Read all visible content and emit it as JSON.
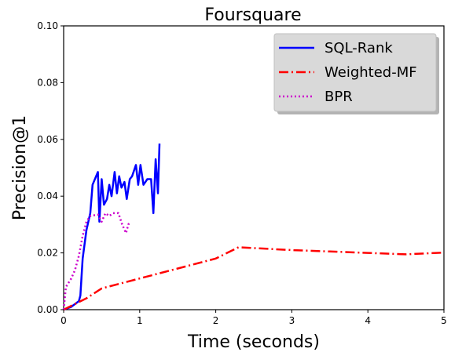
{
  "chart_data": {
    "type": "line",
    "title": "Foursquare",
    "xlabel": "Time (seconds)",
    "ylabel": "Precision@1",
    "xlim": [
      0,
      5
    ],
    "ylim": [
      0,
      0.1
    ],
    "x_ticks": [
      "0",
      "1",
      "2",
      "3",
      "4",
      "5"
    ],
    "y_ticks": [
      "0.00",
      "0.02",
      "0.04",
      "0.06",
      "0.08",
      "0.10"
    ],
    "legend_position": "top-right",
    "grid": false,
    "series": [
      {
        "name": "SQL-Rank",
        "color": "#0000ff",
        "style": "solid",
        "points": [
          [
            0.0,
            0.0
          ],
          [
            0.1,
            0.001
          ],
          [
            0.2,
            0.003
          ],
          [
            0.22,
            0.005
          ],
          [
            0.25,
            0.018
          ],
          [
            0.3,
            0.028
          ],
          [
            0.35,
            0.034
          ],
          [
            0.38,
            0.044
          ],
          [
            0.45,
            0.0485
          ],
          [
            0.47,
            0.031
          ],
          [
            0.5,
            0.046
          ],
          [
            0.53,
            0.037
          ],
          [
            0.57,
            0.039
          ],
          [
            0.6,
            0.044
          ],
          [
            0.63,
            0.04
          ],
          [
            0.67,
            0.0485
          ],
          [
            0.7,
            0.041
          ],
          [
            0.73,
            0.047
          ],
          [
            0.76,
            0.043
          ],
          [
            0.8,
            0.045
          ],
          [
            0.83,
            0.039
          ],
          [
            0.87,
            0.046
          ],
          [
            0.9,
            0.047
          ],
          [
            0.95,
            0.051
          ],
          [
            0.98,
            0.044
          ],
          [
            1.01,
            0.051
          ],
          [
            1.05,
            0.044
          ],
          [
            1.1,
            0.046
          ],
          [
            1.15,
            0.046
          ],
          [
            1.18,
            0.034
          ],
          [
            1.21,
            0.053
          ],
          [
            1.24,
            0.041
          ],
          [
            1.26,
            0.0585
          ]
        ]
      },
      {
        "name": "Weighted-MF",
        "color": "#ff0000",
        "style": "dashdot",
        "points": [
          [
            0.0,
            0.0
          ],
          [
            0.3,
            0.004
          ],
          [
            0.5,
            0.0075
          ],
          [
            1.0,
            0.011
          ],
          [
            1.5,
            0.0145
          ],
          [
            2.0,
            0.018
          ],
          [
            2.3,
            0.022
          ],
          [
            3.0,
            0.021
          ],
          [
            3.5,
            0.0205
          ],
          [
            4.0,
            0.02
          ],
          [
            4.5,
            0.0195
          ],
          [
            5.0,
            0.0201
          ]
        ]
      },
      {
        "name": "BPR",
        "color": "#cc00cc",
        "style": "dotted",
        "points": [
          [
            0.0,
            0.0
          ],
          [
            0.03,
            0.008
          ],
          [
            0.1,
            0.011
          ],
          [
            0.15,
            0.014
          ],
          [
            0.2,
            0.019
          ],
          [
            0.25,
            0.026
          ],
          [
            0.3,
            0.031
          ],
          [
            0.35,
            0.033
          ],
          [
            0.45,
            0.0335
          ],
          [
            0.5,
            0.031
          ],
          [
            0.55,
            0.034
          ],
          [
            0.6,
            0.033
          ],
          [
            0.65,
            0.034
          ],
          [
            0.72,
            0.034
          ],
          [
            0.77,
            0.03
          ],
          [
            0.82,
            0.027
          ],
          [
            0.85,
            0.03
          ],
          [
            0.88,
            0.031
          ]
        ]
      }
    ]
  }
}
